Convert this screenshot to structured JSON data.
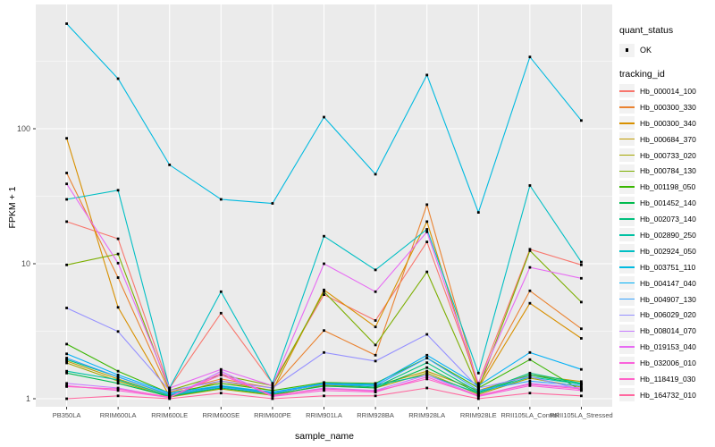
{
  "figure": {
    "background": "#FFFFFF",
    "panel_background": "#EBEBEB",
    "gridline_color": "#FFFFFF",
    "tick_mark_color": "#333333",
    "axis_text_color": "#4D4D4D",
    "point_color": "#000000"
  },
  "axes": {
    "x_label": "sample_name",
    "y_label": "FPKM + 1",
    "y_tick_labels": [
      "1",
      "10",
      "100"
    ],
    "y_tick_values": [
      1,
      10,
      100
    ]
  },
  "legend": {
    "quant_status_title": "quant_status",
    "quant_status_items": [
      {
        "label": "OK"
      }
    ],
    "tracking_id_title": "tracking_id"
  },
  "chart_data": {
    "type": "line",
    "title": "",
    "xlabel": "sample_name",
    "ylabel": "FPKM + 1",
    "y_scale": "log10",
    "ylim": [
      1,
      830
    ],
    "grid": true,
    "legend_position": "right",
    "quant_status": "OK",
    "categories": [
      "PB350LA",
      "RRIM600LA",
      "RRIM600LE",
      "RRIM600SE",
      "RRIM600PE",
      "RRIM901LA",
      "RRIM928BA",
      "RRIM928LA",
      "RRIM928LE",
      "RRII105LA_Control",
      "RRII105LA_Stressed"
    ],
    "series": [
      {
        "name": "Hb_000014_100",
        "color": "#F8766D",
        "values": [
          20.5,
          15.3,
          1.2,
          4.3,
          1.3,
          5.9,
          3.8,
          14.5,
          1.3,
          12.8,
          9.8
        ]
      },
      {
        "name": "Hb_000300_330",
        "color": "#EA8331",
        "values": [
          47,
          7.9,
          1.12,
          1.4,
          1.2,
          3.2,
          2.1,
          27.4,
          1.25,
          6.3,
          3.3
        ]
      },
      {
        "name": "Hb_000300_340",
        "color": "#D89000",
        "values": [
          85,
          4.75,
          1.05,
          1.35,
          1.15,
          6.4,
          3.4,
          20.5,
          1.2,
          5.1,
          2.8
        ]
      },
      {
        "name": "Hb_000684_370",
        "color": "#C09B00",
        "values": [
          1.9,
          1.4,
          1.05,
          1.25,
          1.1,
          1.3,
          1.25,
          1.6,
          1.15,
          1.5,
          1.34
        ]
      },
      {
        "name": "Hb_000733_020",
        "color": "#A3A500",
        "values": [
          1.84,
          1.35,
          1.03,
          1.18,
          1.06,
          1.26,
          1.2,
          1.55,
          1.08,
          1.42,
          1.22
        ]
      },
      {
        "name": "Hb_000784_130",
        "color": "#7CAE00",
        "values": [
          9.8,
          11.8,
          1.15,
          1.5,
          1.25,
          6.2,
          2.5,
          8.7,
          1.18,
          12.5,
          5.2
        ]
      },
      {
        "name": "Hb_001198_050",
        "color": "#39B600",
        "values": [
          2.54,
          1.6,
          1.1,
          1.3,
          1.15,
          1.32,
          1.3,
          2.0,
          1.2,
          1.95,
          1.15
        ]
      },
      {
        "name": "Hb_001452_140",
        "color": "#00BB4E",
        "values": [
          1.55,
          1.3,
          1.04,
          1.2,
          1.08,
          1.24,
          1.2,
          1.7,
          1.1,
          1.5,
          1.28
        ]
      },
      {
        "name": "Hb_002073_140",
        "color": "#00BF7D",
        "values": [
          1.95,
          1.45,
          1.07,
          1.24,
          1.1,
          1.28,
          1.22,
          1.85,
          1.12,
          1.55,
          1.3
        ]
      },
      {
        "name": "Hb_002890_250",
        "color": "#00C1A3",
        "values": [
          1.6,
          1.38,
          1.05,
          1.22,
          1.09,
          1.3,
          1.26,
          1.5,
          1.1,
          1.45,
          1.28
        ]
      },
      {
        "name": "Hb_002924_050",
        "color": "#00BFC4",
        "values": [
          30,
          35,
          1.2,
          6.2,
          1.3,
          16,
          9,
          18,
          1.55,
          38,
          10.3
        ]
      },
      {
        "name": "Hb_003751_110",
        "color": "#00BAE0",
        "values": [
          600,
          235,
          54,
          30,
          28,
          122,
          46,
          250,
          24,
          340,
          115
        ]
      },
      {
        "name": "Hb_004147_040",
        "color": "#00B0F6",
        "values": [
          2.15,
          1.5,
          1.1,
          1.25,
          1.12,
          1.3,
          1.28,
          2.1,
          1.25,
          2.2,
          1.65
        ]
      },
      {
        "name": "Hb_004907_130",
        "color": "#35A2FF",
        "values": [
          2.0,
          1.45,
          1.08,
          1.22,
          1.1,
          1.28,
          1.25,
          2.0,
          1.15,
          1.35,
          1.25
        ]
      },
      {
        "name": "Hb_006029_020",
        "color": "#9590FF",
        "values": [
          4.7,
          3.15,
          1.15,
          1.35,
          1.2,
          2.2,
          1.9,
          3.0,
          1.2,
          1.46,
          1.17
        ]
      },
      {
        "name": "Hb_008014_070",
        "color": "#C77CFF",
        "values": [
          1.3,
          1.2,
          1.02,
          1.6,
          1.05,
          1.2,
          1.15,
          1.5,
          1.05,
          1.3,
          1.2
        ]
      },
      {
        "name": "Hb_019153_040",
        "color": "#E76BF3",
        "values": [
          39,
          10.1,
          1.2,
          1.65,
          1.25,
          10,
          6.2,
          17.2,
          1.3,
          9.4,
          7.8
        ]
      },
      {
        "name": "Hb_032006_010",
        "color": "#FA62DB",
        "values": [
          1.25,
          1.15,
          1.02,
          1.55,
          1.04,
          1.15,
          1.12,
          1.45,
          1.04,
          1.25,
          1.15
        ]
      },
      {
        "name": "Hb_118419_030",
        "color": "#FF61C8",
        "values": [
          1.23,
          1.18,
          1.03,
          1.5,
          1.06,
          1.18,
          1.14,
          1.4,
          1.06,
          1.28,
          1.18
        ]
      },
      {
        "name": "Hb_164732_010",
        "color": "#FF689F",
        "values": [
          1.0,
          1.05,
          1.0,
          1.1,
          1.0,
          1.05,
          1.05,
          1.2,
          1.0,
          1.1,
          1.05
        ]
      }
    ]
  }
}
